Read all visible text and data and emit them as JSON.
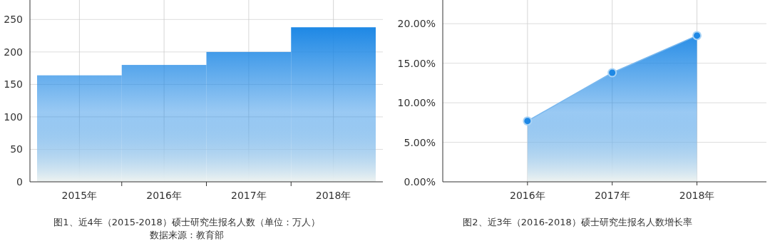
{
  "chart_data": [
    {
      "type": "bar",
      "title": "图1、近4年（2015-2018）硕士研究生报名人数（单位：万人）",
      "annotations": [
        "数据来源：教育部"
      ],
      "categories": [
        "2015年",
        "2016年",
        "2017年",
        "2018年"
      ],
      "series": [
        {
          "color": "#1e88e5",
          "values": [
            164,
            180,
            200,
            238
          ]
        }
      ],
      "ylim": [
        0,
        280
      ],
      "yticks": [
        0,
        50,
        100,
        150,
        200,
        250
      ],
      "grid": true
    },
    {
      "type": "area",
      "title": "图2、近3年（2016-2018）硕士研究生报名人数增长率",
      "categories": [
        "2016年",
        "2017年",
        "2018年"
      ],
      "series": [
        {
          "color": "#1e88e5",
          "values": [
            7.7,
            13.8,
            18.5
          ]
        }
      ],
      "ylim": [
        0,
        23
      ],
      "yticks": [
        {
          "value": 0,
          "label": "0.00%"
        },
        {
          "value": 5,
          "label": "5.00%"
        },
        {
          "value": 10,
          "label": "10.00%"
        },
        {
          "value": 15,
          "label": "15.00%"
        },
        {
          "value": 20,
          "label": "20.00%"
        }
      ],
      "grid": true,
      "marker": "circle"
    }
  ]
}
